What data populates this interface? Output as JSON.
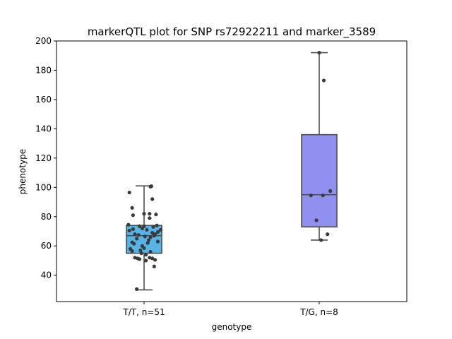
{
  "chart_data": {
    "type": "box",
    "title": "markerQTL plot for SNP rs72922211 and marker_3589",
    "xlabel": "genotype",
    "ylabel": "phenotype",
    "ylim": [
      22,
      200
    ],
    "yticks": [
      40,
      60,
      80,
      100,
      120,
      140,
      160,
      180,
      200
    ],
    "grid": false,
    "categories": [
      "T/T, n=51",
      "T/G, n=8"
    ],
    "colors": {
      "box": [
        "#56b4e9",
        "#9090f0"
      ],
      "edge": "#4d4d4d",
      "point": "#3a3a3a"
    },
    "boxes": [
      {
        "category": "T/T, n=51",
        "whisker_low": 30,
        "q1": 55,
        "median": 67,
        "q3": 74,
        "whisker_high": 101
      },
      {
        "category": "T/G, n=8",
        "whisker_low": 64,
        "q1": 73,
        "median": 95,
        "q3": 136,
        "whisker_high": 192
      }
    ],
    "points": [
      [
        {
          "x": -0.16,
          "y": 96.5
        },
        {
          "x": 0.07,
          "y": 100.5
        },
        {
          "x": 0.08,
          "y": 100.8
        },
        {
          "x": -0.13,
          "y": 86
        },
        {
          "x": -0.12,
          "y": 81
        },
        {
          "x": 0.0,
          "y": 82
        },
        {
          "x": 0.06,
          "y": 82
        },
        {
          "x": 0.13,
          "y": 81.5
        },
        {
          "x": 0.09,
          "y": 92
        },
        {
          "x": 0.06,
          "y": 79
        },
        {
          "x": -0.17,
          "y": 74.5
        },
        {
          "x": -0.05,
          "y": 73.5
        },
        {
          "x": -0.02,
          "y": 72
        },
        {
          "x": 0.03,
          "y": 71
        },
        {
          "x": 0.1,
          "y": 73
        },
        {
          "x": 0.18,
          "y": 71
        },
        {
          "x": -0.16,
          "y": 70.5
        },
        {
          "x": 0.09,
          "y": 69
        },
        {
          "x": 0.12,
          "y": 68
        },
        {
          "x": 0.15,
          "y": 69.5
        },
        {
          "x": -0.1,
          "y": 68
        },
        {
          "x": -0.06,
          "y": 67.5
        },
        {
          "x": 0.01,
          "y": 66.5
        },
        {
          "x": 0.07,
          "y": 66
        },
        {
          "x": 0.15,
          "y": 63
        },
        {
          "x": -0.13,
          "y": 62.5
        },
        {
          "x": -0.11,
          "y": 61.5
        },
        {
          "x": 0.04,
          "y": 62
        },
        {
          "x": -0.15,
          "y": 58
        },
        {
          "x": 0.0,
          "y": 58.5
        },
        {
          "x": -0.13,
          "y": 56.5
        },
        {
          "x": -0.03,
          "y": 55
        },
        {
          "x": 0.02,
          "y": 54
        },
        {
          "x": 0.07,
          "y": 56
        },
        {
          "x": -0.1,
          "y": 52
        },
        {
          "x": -0.07,
          "y": 51.5
        },
        {
          "x": -0.05,
          "y": 51
        },
        {
          "x": 0.02,
          "y": 50
        },
        {
          "x": 0.06,
          "y": 52
        },
        {
          "x": 0.09,
          "y": 51.5
        },
        {
          "x": 0.12,
          "y": 50.5
        },
        {
          "x": 0.11,
          "y": 46
        },
        {
          "x": -0.08,
          "y": 30.5
        },
        {
          "x": -0.02,
          "y": 60
        },
        {
          "x": 0.05,
          "y": 64
        },
        {
          "x": -0.08,
          "y": 65
        },
        {
          "x": 0.11,
          "y": 67
        },
        {
          "x": -0.12,
          "y": 71.5
        },
        {
          "x": 0.0,
          "y": 73.5
        },
        {
          "x": 0.14,
          "y": 74
        },
        {
          "x": -0.04,
          "y": 57
        }
      ],
      [
        {
          "x": 0.0,
          "y": 192
        },
        {
          "x": 0.05,
          "y": 173
        },
        {
          "x": 0.12,
          "y": 97.5
        },
        {
          "x": -0.09,
          "y": 94.5
        },
        {
          "x": -0.03,
          "y": 77.5
        },
        {
          "x": 0.09,
          "y": 68
        },
        {
          "x": 0.02,
          "y": 64
        },
        {
          "x": 0.04,
          "y": 94.5
        }
      ]
    ]
  }
}
